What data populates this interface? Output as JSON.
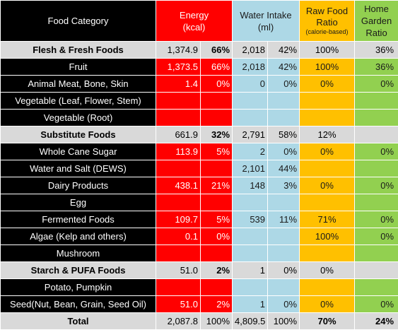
{
  "header": {
    "food_category": "Food Category",
    "energy_title": "Energy",
    "energy_unit": "(kcal)",
    "water_title": "Water Intake",
    "water_unit": "(ml)",
    "raw_title_1": "Raw Food",
    "raw_title_2": "Ratio",
    "raw_note": "(calorie-based)",
    "home_title_1": "Home",
    "home_title_2": "Garden",
    "home_title_3": "Ratio"
  },
  "rows": [
    {
      "type": "group",
      "name": "Flesh & Fresh Foods",
      "energy": "1,374.9",
      "energy_pct": "66%",
      "water": "2,018",
      "water_pct": "42%",
      "raw": "100%",
      "home": "36%"
    },
    {
      "type": "item",
      "name": "Fruit",
      "energy": "1,373.5",
      "energy_pct": "66%",
      "water": "2,018",
      "water_pct": "42%",
      "raw": "100%",
      "home": "36%"
    },
    {
      "type": "item",
      "name": "Animal Meat, Bone, Skin",
      "energy": "1.4",
      "energy_pct": "0%",
      "water": "0",
      "water_pct": "0%",
      "raw": "0%",
      "home": "0%"
    },
    {
      "type": "item",
      "name": "Vegetable (Leaf, Flower, Stem)",
      "energy": "",
      "energy_pct": "",
      "water": "",
      "water_pct": "",
      "raw": "",
      "home": ""
    },
    {
      "type": "item",
      "name": "Vegetable (Root)",
      "energy": "",
      "energy_pct": "",
      "water": "",
      "water_pct": "",
      "raw": "",
      "home": ""
    },
    {
      "type": "group",
      "name": "Substitute Foods",
      "energy": "661.9",
      "energy_pct": "32%",
      "water": "2,791",
      "water_pct": "58%",
      "raw": "12%",
      "home": ""
    },
    {
      "type": "item",
      "name": "Whole Cane Sugar",
      "energy": "113.9",
      "energy_pct": "5%",
      "water": "2",
      "water_pct": "0%",
      "raw": "0%",
      "home": "0%"
    },
    {
      "type": "item",
      "name": "Water and Salt (DEWS)",
      "energy": "",
      "energy_pct": "",
      "water": "2,101",
      "water_pct": "44%",
      "raw": "",
      "home": ""
    },
    {
      "type": "item",
      "name": "Dairy Products",
      "energy": "438.1",
      "energy_pct": "21%",
      "water": "148",
      "water_pct": "3%",
      "raw": "0%",
      "home": "0%"
    },
    {
      "type": "item",
      "name": "Egg",
      "energy": "",
      "energy_pct": "",
      "water": "",
      "water_pct": "",
      "raw": "",
      "home": ""
    },
    {
      "type": "item",
      "name": "Fermented Foods",
      "energy": "109.7",
      "energy_pct": "5%",
      "water": "539",
      "water_pct": "11%",
      "raw": "71%",
      "home": "0%"
    },
    {
      "type": "item",
      "name": "Algae (Kelp and others)",
      "energy": "0.1",
      "energy_pct": "0%",
      "water": "",
      "water_pct": "",
      "raw": "100%",
      "home": "0%"
    },
    {
      "type": "item",
      "name": "Mushroom",
      "energy": "",
      "energy_pct": "",
      "water": "",
      "water_pct": "",
      "raw": "",
      "home": ""
    },
    {
      "type": "group",
      "name": "Starch & PUFA Foods",
      "energy": "51.0",
      "energy_pct": "2%",
      "water": "1",
      "water_pct": "0%",
      "raw": "0%",
      "home": ""
    },
    {
      "type": "item",
      "name": "Potato, Pumpkin",
      "energy": "",
      "energy_pct": "",
      "water": "",
      "water_pct": "",
      "raw": "",
      "home": ""
    },
    {
      "type": "item",
      "name": "Seed(Nut, Bean, Grain, Seed Oil)",
      "energy": "51.0",
      "energy_pct": "2%",
      "water": "1",
      "water_pct": "0%",
      "raw": "0%",
      "home": "0%"
    },
    {
      "type": "total",
      "name": "Total",
      "energy": "2,087.8",
      "energy_pct": "100%",
      "water": "4,809.5",
      "water_pct": "100%",
      "raw": "70%",
      "home": "24%"
    }
  ],
  "colors": {
    "category_bg": "#000000",
    "energy_bg": "#ff0000",
    "water_bg": "#add8e6",
    "raw_bg": "#ffc000",
    "home_bg": "#92d050",
    "group_bg": "#d9d9d9"
  }
}
